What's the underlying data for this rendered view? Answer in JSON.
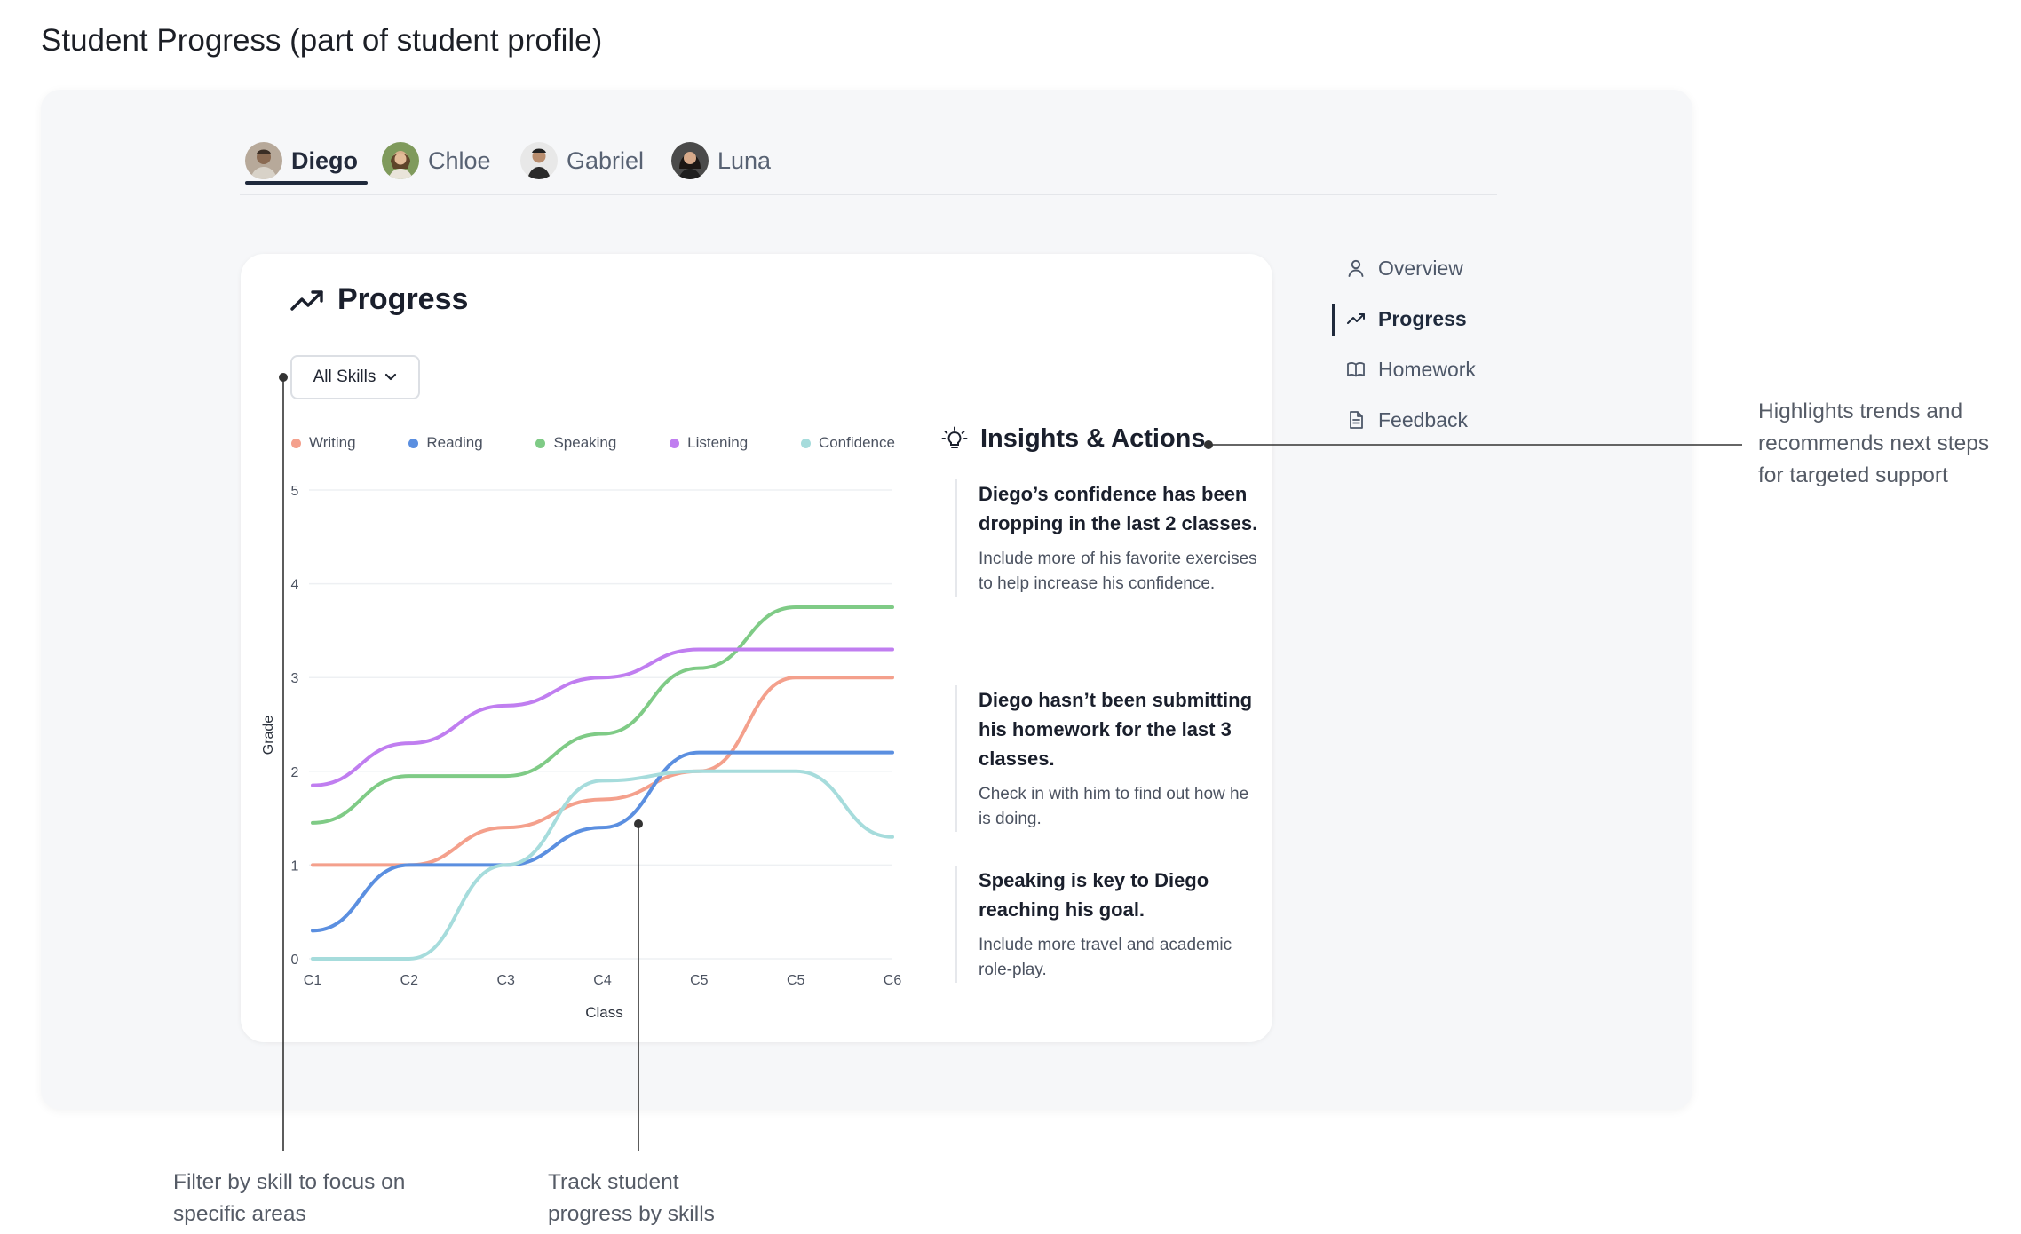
{
  "page": {
    "title": "Student Progress (part of student profile)"
  },
  "tabs": [
    {
      "name": "Diego",
      "active": true
    },
    {
      "name": "Chloe",
      "active": false
    },
    {
      "name": "Gabriel",
      "active": false
    },
    {
      "name": "Luna",
      "active": false
    }
  ],
  "progress": {
    "title": "Progress",
    "filter_label": "All Skills"
  },
  "nav": {
    "items": [
      {
        "label": "Overview",
        "icon": "user-icon"
      },
      {
        "label": "Progress",
        "icon": "trend-up-icon",
        "active": true
      },
      {
        "label": "Homework",
        "icon": "book-icon"
      },
      {
        "label": "Feedback",
        "icon": "document-icon"
      }
    ]
  },
  "insights": {
    "title": "Insights & Actions",
    "items": [
      {
        "heading": "Diego’s confidence has been dropping in the last 2 classes.",
        "body": "Include more of his favorite exercises to help increase his confidence."
      },
      {
        "heading": "Diego hasn’t been submitting his homework for the last 3 classes.",
        "body": "Check in with him to find out how he is doing."
      },
      {
        "heading": "Speaking is key to Diego reaching his goal.",
        "body": "Include more travel and academic role-play."
      }
    ]
  },
  "annotations": {
    "insights": "Highlights trends and recommends next steps for targeted support",
    "filter": "Filter by skill to focus on specific areas",
    "track": "Track student progress by skills"
  },
  "chart_data": {
    "type": "line",
    "xlabel": "Class",
    "ylabel": "Grade",
    "categories": [
      "C1",
      "C2",
      "C3",
      "C4",
      "C5",
      "C5",
      "C6"
    ],
    "ylim": [
      0,
      5
    ],
    "yticks": [
      "0",
      "1",
      "2",
      "3",
      "4",
      "5"
    ],
    "grid": true,
    "legend_position": "top",
    "series": [
      {
        "name": "Writing",
        "color": "#f4a08c",
        "values": [
          1.0,
          1.0,
          1.4,
          1.7,
          2.0,
          3.0,
          3.0
        ]
      },
      {
        "name": "Reading",
        "color": "#5b8fe0",
        "values": [
          0.3,
          1.0,
          1.0,
          1.4,
          2.2,
          2.2,
          2.2
        ]
      },
      {
        "name": "Speaking",
        "color": "#7fcb86",
        "values": [
          1.45,
          1.95,
          1.95,
          2.4,
          3.1,
          3.75,
          3.75
        ]
      },
      {
        "name": "Listening",
        "color": "#c07ef0",
        "values": [
          1.85,
          2.3,
          2.7,
          3.0,
          3.3,
          3.3,
          3.3
        ]
      },
      {
        "name": "Confidence",
        "color": "#a6dcdc",
        "values": [
          0.0,
          0.0,
          1.0,
          1.9,
          2.0,
          2.0,
          1.3
        ]
      }
    ]
  }
}
